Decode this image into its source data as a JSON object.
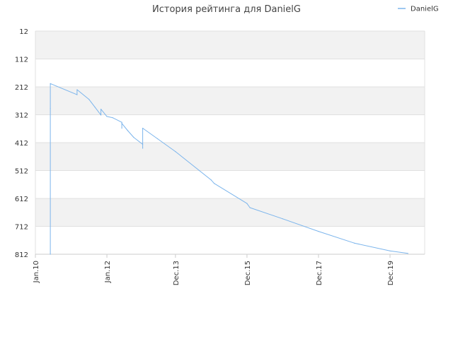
{
  "chart_data": {
    "type": "line",
    "title": "История рейтинга для DanielG",
    "y_ticks": [
      "12",
      "112",
      "212",
      "312",
      "412",
      "512",
      "612",
      "712",
      "812"
    ],
    "y_range": [
      12,
      812
    ],
    "y_inverted": true,
    "x_ticks": [
      "Jan.10",
      "Jan.12",
      "Dec.13",
      "Dec.15",
      "Dec.17",
      "Dec.19"
    ],
    "grid": "horizontal, alternating bands",
    "legend_position": "top-right",
    "series": [
      {
        "name": "DanielG",
        "color": "#7cb5ec",
        "points": [
          {
            "x": "Jun.10",
            "y": 812
          },
          {
            "x": "Jun.10",
            "y": 290
          },
          {
            "x": "Jun.10",
            "y": 200
          },
          {
            "x": "Mar.11",
            "y": 240
          },
          {
            "x": "Mar.11",
            "y": 222
          },
          {
            "x": "Jul.11",
            "y": 257
          },
          {
            "x": "Sep.11",
            "y": 285
          },
          {
            "x": "Nov.11",
            "y": 313
          },
          {
            "x": "Nov.11",
            "y": 292
          },
          {
            "x": "Jan.12",
            "y": 318
          },
          {
            "x": "Mar.12",
            "y": 323
          },
          {
            "x": "Jun.12",
            "y": 339
          },
          {
            "x": "Jun.12",
            "y": 360
          },
          {
            "x": "Jun.12",
            "y": 343
          },
          {
            "x": "Aug.12",
            "y": 369
          },
          {
            "x": "Oct.12",
            "y": 393
          },
          {
            "x": "Jan.13",
            "y": 418
          },
          {
            "x": "Jan.13",
            "y": 432
          },
          {
            "x": "Jan.13",
            "y": 360
          },
          {
            "x": "Jun.13",
            "y": 398
          },
          {
            "x": "Dec.13",
            "y": 444
          },
          {
            "x": "Dec.14",
            "y": 546
          },
          {
            "x": "Jan.15",
            "y": 558
          },
          {
            "x": "Dec.15",
            "y": 630
          },
          {
            "x": "Jan.16",
            "y": 645
          },
          {
            "x": "Dec.16",
            "y": 685
          },
          {
            "x": "Dec.17",
            "y": 730
          },
          {
            "x": "Dec.18",
            "y": 772
          },
          {
            "x": "Dec.19",
            "y": 800
          },
          {
            "x": "Jun.20",
            "y": 809
          }
        ]
      }
    ]
  }
}
